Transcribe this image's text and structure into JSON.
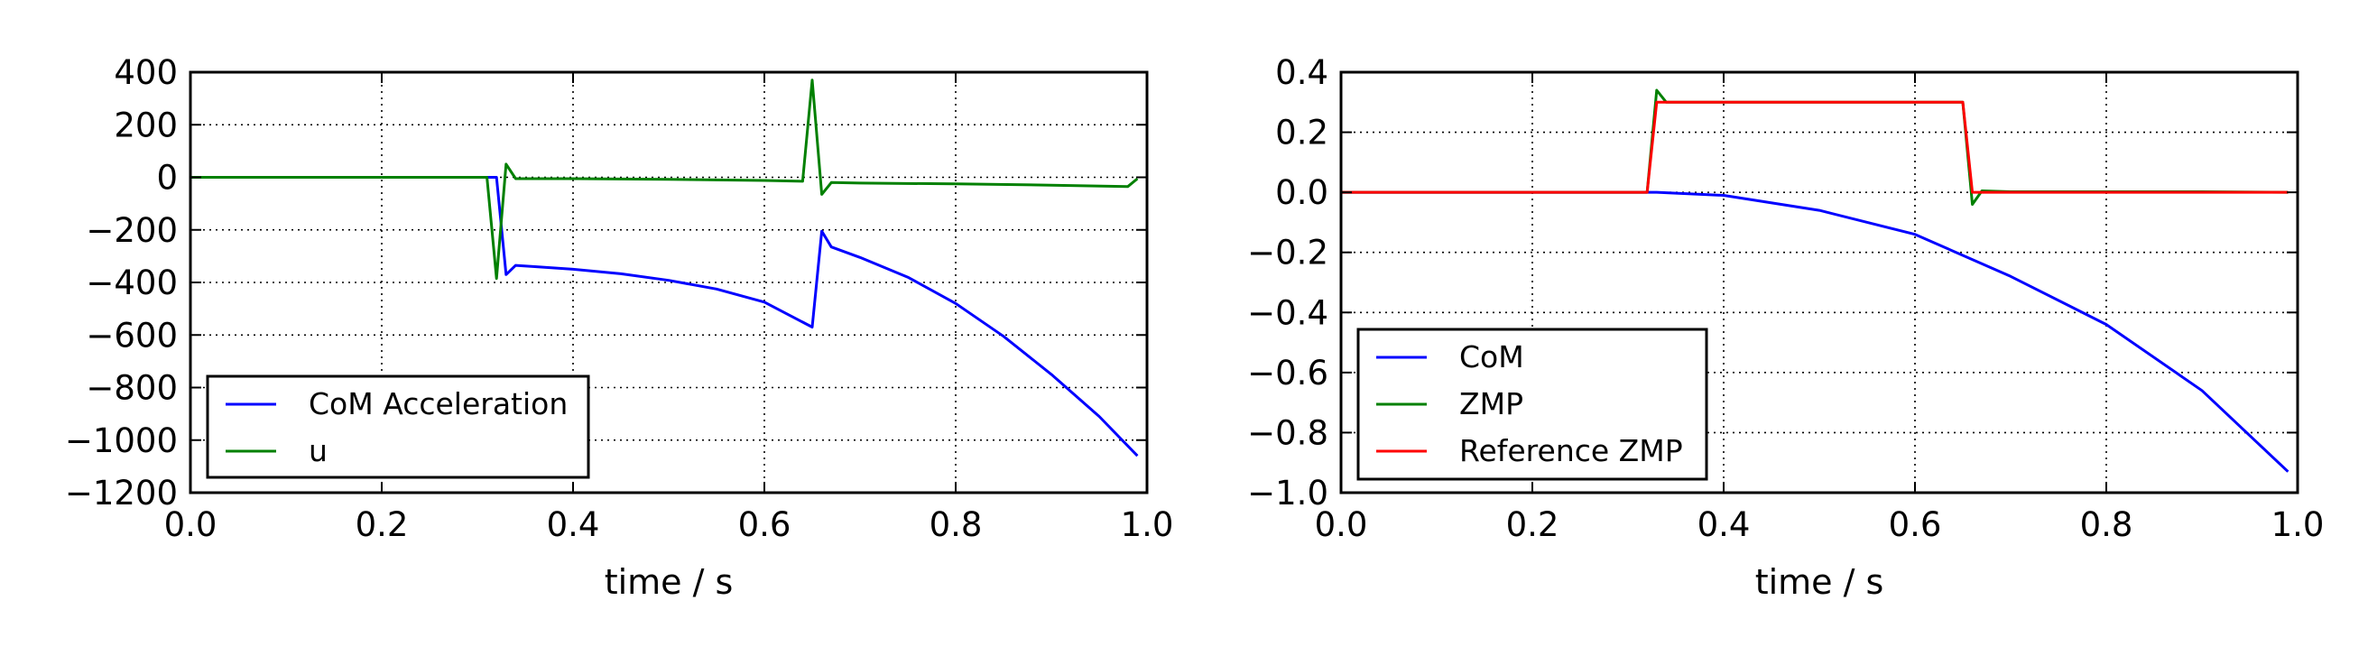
{
  "chart_data": [
    {
      "type": "line",
      "xlabel": "time / s",
      "ylabel": "",
      "xlim": [
        0.0,
        1.0
      ],
      "ylim": [
        -1200,
        400
      ],
      "xticks": [
        "0.0",
        "0.2",
        "0.4",
        "0.6",
        "0.8",
        "1.0"
      ],
      "yticks": [
        "400",
        "200",
        "0",
        "−200",
        "−400",
        "−600",
        "−800",
        "−1000",
        "−1200"
      ],
      "grid": true,
      "legend": "lower-left",
      "series": [
        {
          "name": "CoM Acceleration",
          "color": "#0000ff",
          "x": [
            0.0,
            0.1,
            0.2,
            0.3,
            0.32,
            0.33,
            0.34,
            0.36,
            0.4,
            0.45,
            0.5,
            0.55,
            0.6,
            0.65,
            0.66,
            0.67,
            0.7,
            0.75,
            0.8,
            0.85,
            0.9,
            0.95,
            0.99
          ],
          "y": [
            0,
            0,
            0,
            0,
            0,
            -370,
            -335,
            -340,
            -350,
            -367,
            -392,
            -425,
            -475,
            -570,
            -205,
            -265,
            -305,
            -380,
            -480,
            -605,
            -750,
            -910,
            -1060
          ]
        },
        {
          "name": "u",
          "color": "#008000",
          "x": [
            0.0,
            0.1,
            0.2,
            0.3,
            0.31,
            0.32,
            0.33,
            0.34,
            0.4,
            0.5,
            0.6,
            0.64,
            0.65,
            0.66,
            0.67,
            0.7,
            0.8,
            0.9,
            0.98,
            0.99
          ],
          "y": [
            0,
            0,
            0,
            0,
            0,
            -385,
            50,
            -5,
            -5,
            -8,
            -12,
            -15,
            370,
            -65,
            -20,
            -22,
            -25,
            -30,
            -35,
            -5
          ]
        }
      ]
    },
    {
      "type": "line",
      "xlabel": "time / s",
      "ylabel": "",
      "xlim": [
        0.0,
        1.0
      ],
      "ylim": [
        -1.0,
        0.4
      ],
      "xticks": [
        "0.0",
        "0.2",
        "0.4",
        "0.6",
        "0.8",
        "1.0"
      ],
      "yticks": [
        "0.4",
        "0.2",
        "0.0",
        "−0.2",
        "−0.4",
        "−0.6",
        "−0.8",
        "−1.0"
      ],
      "grid": true,
      "legend": "lower-left",
      "series": [
        {
          "name": "CoM",
          "color": "#0000ff",
          "x": [
            0.0,
            0.1,
            0.2,
            0.3,
            0.33,
            0.4,
            0.5,
            0.6,
            0.7,
            0.8,
            0.9,
            0.99
          ],
          "y": [
            0,
            0,
            0,
            0,
            0,
            -0.01,
            -0.06,
            -0.14,
            -0.28,
            -0.44,
            -0.66,
            -0.93
          ]
        },
        {
          "name": "ZMP",
          "color": "#008000",
          "x": [
            0.0,
            0.1,
            0.2,
            0.3,
            0.32,
            0.33,
            0.34,
            0.4,
            0.5,
            0.6,
            0.65,
            0.66,
            0.67,
            0.7,
            0.8,
            0.9,
            0.99
          ],
          "y": [
            0,
            0,
            0,
            0,
            0,
            0.34,
            0.3,
            0.3,
            0.3,
            0.3,
            0.3,
            -0.04,
            0.005,
            0.002,
            0.002,
            0.002,
            0.0
          ]
        },
        {
          "name": "Reference ZMP",
          "color": "#ff0000",
          "x": [
            0.0,
            0.1,
            0.2,
            0.3,
            0.32,
            0.33,
            0.4,
            0.5,
            0.6,
            0.65,
            0.66,
            0.7,
            0.8,
            0.9,
            0.99
          ],
          "y": [
            0,
            0,
            0,
            0,
            0,
            0.3,
            0.3,
            0.3,
            0.3,
            0.3,
            0.0,
            0.0,
            0.0,
            0.0,
            0.0
          ]
        }
      ]
    }
  ]
}
